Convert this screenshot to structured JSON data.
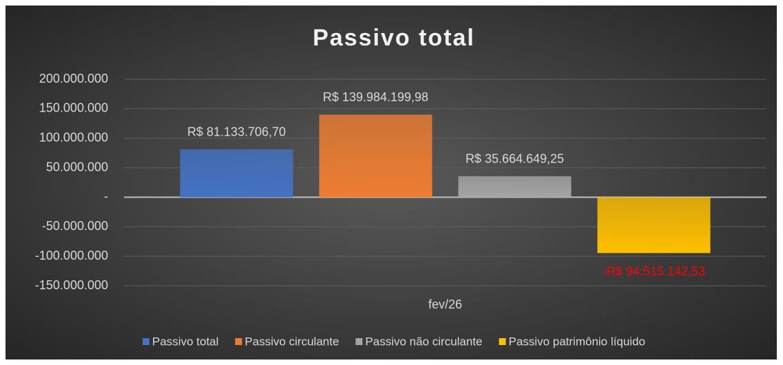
{
  "chart_data": {
    "type": "bar",
    "title": "Passivo total",
    "categories": [
      "fev/26"
    ],
    "series": [
      {
        "name": "Passivo total",
        "color": "#4472c4",
        "values": [
          81133706.7
        ],
        "value_labels": [
          "R$ 81.133.706,70"
        ]
      },
      {
        "name": "Passivo circulante",
        "color": "#ed7d31",
        "values": [
          139984199.98
        ],
        "value_labels": [
          "R$ 139.984.199,98"
        ]
      },
      {
        "name": "Passivo não circulante",
        "color": "#a5a5a5",
        "values": [
          35664649.25
        ],
        "value_labels": [
          "R$ 35.664.649,25"
        ]
      },
      {
        "name": "Passivo patrimônio líquido",
        "color": "#ffc000",
        "values": [
          -94515142.53
        ],
        "value_labels": [
          "-R$ 94.515.142,53"
        ]
      }
    ],
    "ylim": [
      -150000000,
      200000000
    ],
    "yticks": [
      {
        "value": -150000000,
        "label": "-150.000.000"
      },
      {
        "value": -100000000,
        "label": "-100.000.000"
      },
      {
        "value": -50000000,
        "label": "-50.000.000"
      },
      {
        "value": 0,
        "label": "-"
      },
      {
        "value": 50000000,
        "label": "50.000.000"
      },
      {
        "value": 100000000,
        "label": "100.000.000"
      },
      {
        "value": 150000000,
        "label": "150.000.000"
      },
      {
        "value": 200000000,
        "label": "200.000.000"
      }
    ],
    "grid": true,
    "legend": "bottom",
    "negative_label_color": "#ff0000"
  }
}
